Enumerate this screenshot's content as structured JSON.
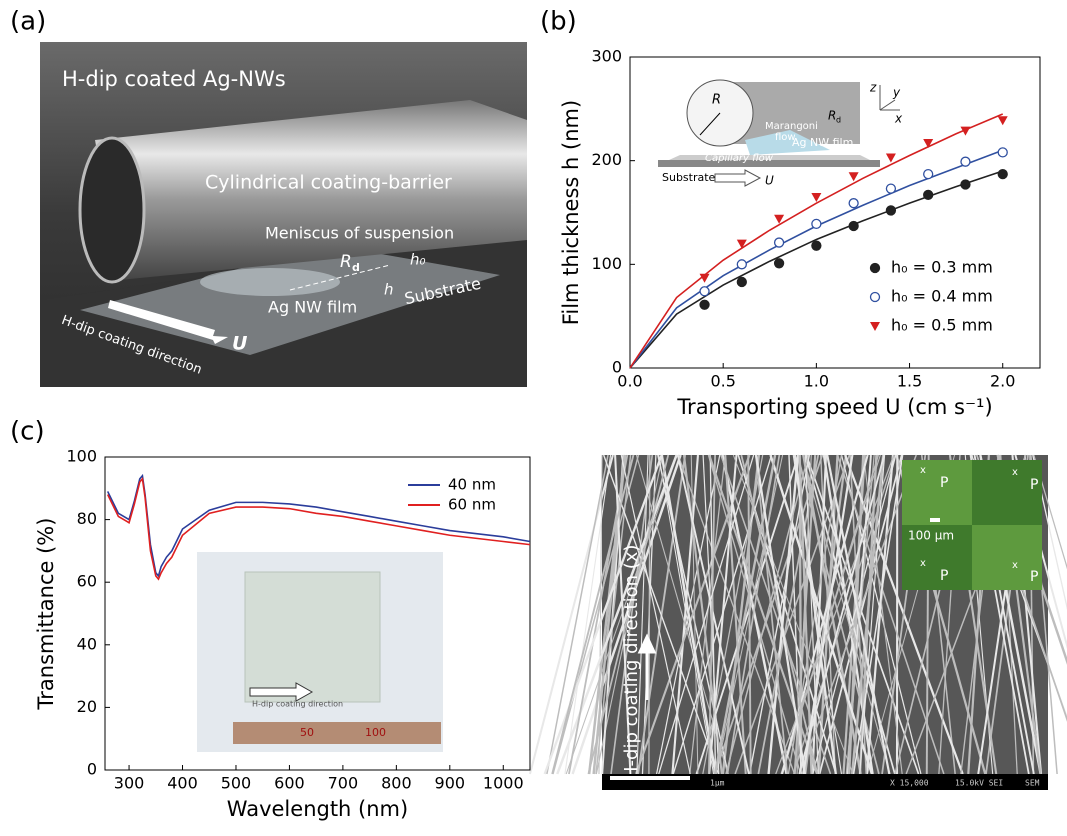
{
  "panel_labels": [
    "(a)",
    "(b)",
    "(c)"
  ],
  "photo_a": {
    "title": "H-dip coated Ag-NWs",
    "barrier": "Cylindrical coating-barrier",
    "meniscus": "Meniscus of suspension",
    "rd": {
      "symbol": "R",
      "subscript": "d"
    },
    "h0": "h₀",
    "h": "h",
    "film": "Ag NW film",
    "substrate": "Substrate",
    "direction": "H-dip coating direction",
    "speed": "U"
  },
  "chart_data": [
    {
      "type": "scatter",
      "ylabel": "Film thickness h (nm)",
      "xlabel": "Transporting speed U (cm s⁻¹)",
      "xlim": [
        0,
        2.2
      ],
      "ylim": [
        0,
        300
      ],
      "xticks": [
        {
          "value": 0,
          "label": "0.0"
        },
        0.5,
        {
          "value": 1,
          "label": "1.0"
        },
        1.5,
        {
          "value": 2,
          "label": "2.0"
        }
      ],
      "yticks": [
        0,
        100,
        200,
        300
      ],
      "x": [
        0.4,
        0.6,
        0.8,
        1.0,
        1.2,
        1.4,
        1.6,
        1.8,
        2.0
      ],
      "series": [
        {
          "name": "h₀ = 0.3 mm",
          "color": "#222222",
          "marker": "filled-circle",
          "values": [
            61,
            83,
            101,
            118,
            137,
            152,
            167,
            177,
            187
          ]
        },
        {
          "name": "h₀ = 0.4 mm",
          "color": "#3050a0",
          "marker": "open-circle",
          "values": [
            74,
            100,
            121,
            139,
            159,
            173,
            187,
            199,
            208
          ]
        },
        {
          "name": "h₀ = 0.5 mm",
          "color": "#d42020",
          "marker": "triangle-down",
          "values": [
            87,
            120,
            144,
            165,
            185,
            203,
            217,
            229,
            239
          ]
        }
      ],
      "fit_x": [
        0,
        0.25,
        0.5,
        0.75,
        1.0,
        1.25,
        1.5,
        1.75,
        2.0
      ],
      "fits": [
        {
          "color": "#222222",
          "values": [
            0,
            52,
            80,
            103,
            124,
            142,
            159,
            175,
            190
          ]
        },
        {
          "color": "#3050a0",
          "values": [
            0,
            58,
            89,
            114,
            137,
            157,
            176,
            193,
            210
          ]
        },
        {
          "color": "#d42020",
          "values": [
            0,
            68,
            104,
            133,
            159,
            183,
            205,
            226,
            245
          ]
        }
      ],
      "legend": "lower right",
      "inset": {
        "radius": "R",
        "rd": {
          "symbol": "R",
          "subscript": "d"
        },
        "marangoni": [
          "Marangoni",
          "flow"
        ],
        "capillary": "Capillary flow",
        "film": "Ag NW film",
        "substrate": "Substrate",
        "speed": "U",
        "axes": [
          "z",
          "y",
          "x"
        ]
      }
    },
    {
      "type": "line",
      "xlabel": "Wavelength (nm)",
      "ylabel": "Transmittance (%)",
      "xlim": [
        255,
        1050
      ],
      "ylim": [
        0,
        100
      ],
      "xticks": [
        300,
        400,
        500,
        600,
        700,
        800,
        900,
        1000
      ],
      "yticks": [
        0,
        20,
        40,
        60,
        80,
        100
      ],
      "x": [
        260,
        280,
        300,
        310,
        320,
        325,
        330,
        340,
        350,
        355,
        360,
        370,
        380,
        400,
        450,
        500,
        550,
        600,
        650,
        700,
        750,
        800,
        850,
        900,
        950,
        1000,
        1050
      ],
      "series": [
        {
          "name": "40 nm",
          "color": "#2b3d9b",
          "values": [
            89,
            82,
            80,
            86,
            93,
            94,
            88,
            72,
            63,
            62,
            65,
            68,
            70,
            77,
            83,
            85.5,
            85.5,
            85,
            84,
            82.5,
            81,
            79.5,
            78,
            76.5,
            75.5,
            74.5,
            73
          ]
        },
        {
          "name": "60 nm",
          "color": "#e02020",
          "values": [
            88,
            81,
            79,
            85,
            92,
            93,
            87,
            70,
            62,
            61,
            63,
            66,
            68,
            75,
            82,
            84,
            84,
            83.5,
            82,
            81,
            79.5,
            78,
            76.5,
            75,
            74,
            73,
            72
          ]
        }
      ],
      "legend": "upper right",
      "inset": {
        "direction": "H-dip coating direction",
        "ruler": [
          "50",
          "100"
        ]
      }
    }
  ],
  "sem": {
    "direction": "H-dip coating direction (x)",
    "scale": "100 µm",
    "polarizer": [
      "P",
      "P",
      "P",
      "P"
    ],
    "axis": [
      "x",
      "x",
      "x",
      "x"
    ],
    "bar": "1µm",
    "magnification": "X 15,000",
    "voltage": "15.0kV SEI",
    "mode": "SEM"
  }
}
